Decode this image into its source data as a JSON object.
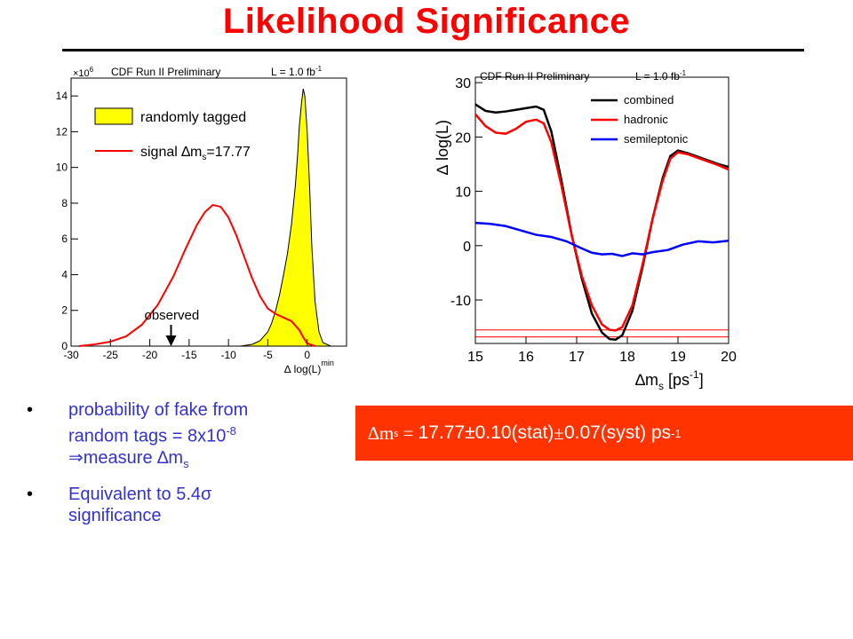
{
  "slide": {
    "title": "Likelihood Significance",
    "bullets": [
      {
        "line1": "probability of fake from",
        "line2a": "random tags = 8x10",
        "line2_exp": "-8",
        "line3_arrow": "⇒",
        "line3_text": "measure ",
        "line3_delta": "∆",
        "line3_m": "m",
        "line3_sub": "s"
      },
      {
        "line1a": "Equivalent to 5.4",
        "line1_sigma": "σ",
        "line2": "significance"
      }
    ],
    "result": {
      "delta": "∆",
      "m": "m",
      "sub": "s",
      "eq": " = ",
      "value": "17.77±0.10(stat)",
      "pm": "±",
      "value2": "0.07(syst) ps",
      "exp": "-1"
    }
  },
  "chart_data": [
    {
      "type": "area",
      "header_left": "CDF Run II Preliminary",
      "header_right": "L = 1.0 fb",
      "header_right_exp": "-1",
      "y_multiplier": "×10",
      "y_multiplier_exp": "6",
      "xlabel": "∆ log(L)",
      "xlabel_sup": "min",
      "xlim": [
        -30,
        5
      ],
      "ylim": [
        0,
        15
      ],
      "x_ticks": [
        -30,
        -25,
        -20,
        -15,
        -10,
        -5,
        0
      ],
      "y_ticks": [
        0,
        2,
        4,
        6,
        8,
        10,
        12,
        14
      ],
      "legend_placement": "top-left",
      "legend": [
        {
          "label": "randomly tagged",
          "color": "#ffff00"
        },
        {
          "label_main": "signal ∆m",
          "label_sub": "s",
          "label_tail": "=17.77",
          "color": "#ff0000"
        }
      ],
      "annotation": {
        "text": "observed",
        "x": -17.3
      },
      "series": [
        {
          "name": "randomly tagged",
          "kind": "histogram",
          "color": "#ffff00",
          "x": [
            -8.5,
            -7,
            -6,
            -5,
            -4.5,
            -4,
            -3.5,
            -3,
            -2.5,
            -2,
            -1.5,
            -1.2,
            -1,
            -0.7,
            -0.5,
            -0.3,
            0,
            0.3,
            0.6,
            1,
            1.5,
            2,
            3
          ],
          "values": [
            0,
            0.1,
            0.3,
            0.8,
            1.3,
            2.0,
            2.9,
            4.0,
            5.2,
            6.8,
            9.0,
            10.8,
            12.3,
            13.7,
            14.4,
            14.0,
            12.0,
            9.0,
            5.5,
            2.5,
            0.8,
            0.2,
            0
          ]
        },
        {
          "name": "signal ∆ms=17.77",
          "kind": "line",
          "color": "#ff0000",
          "x": [
            -29,
            -27,
            -25,
            -23,
            -21,
            -19,
            -17,
            -15.5,
            -14,
            -13,
            -12,
            -11,
            -10,
            -9,
            -8,
            -7,
            -6,
            -5,
            -4,
            -3,
            -2,
            -1,
            -0.5,
            0,
            1
          ],
          "values": [
            0,
            0.1,
            0.25,
            0.55,
            1.2,
            2.3,
            3.9,
            5.4,
            6.8,
            7.5,
            7.9,
            7.8,
            7.2,
            6.2,
            5.0,
            3.8,
            2.8,
            2.1,
            1.8,
            1.6,
            1.4,
            0.9,
            0.5,
            0.15,
            0
          ]
        }
      ]
    },
    {
      "type": "line",
      "header_left": "CDF Run II Preliminary",
      "header_right": "L = 1.0 fb",
      "header_right_exp": "-1",
      "ylabel": "∆ log(L)",
      "xlabel_main": "∆m",
      "xlabel_sub": "s",
      "xlabel_unit": " [ps",
      "xlabel_exp": "-1",
      "xlabel_close": "]",
      "xlim": [
        15,
        20
      ],
      "ylim": [
        -18,
        31
      ],
      "x_ticks": [
        15,
        16,
        17,
        18,
        19,
        20
      ],
      "y_ticks": [
        -10,
        0,
        10,
        20,
        30
      ],
      "legend_placement": "top-right",
      "hlines": [
        -15.5,
        -16.8
      ],
      "hline_color": "#ff0000",
      "series": [
        {
          "name": "combined",
          "color": "#000000",
          "x": [
            15,
            15.2,
            15.4,
            15.6,
            15.8,
            16.0,
            16.2,
            16.35,
            16.5,
            16.7,
            16.9,
            17.1,
            17.3,
            17.5,
            17.65,
            17.77,
            17.9,
            18.1,
            18.3,
            18.5,
            18.7,
            18.85,
            19.0,
            19.2,
            19.5,
            19.8,
            20
          ],
          "values": [
            26,
            24.8,
            24.5,
            24.7,
            25.0,
            25.3,
            25.6,
            25.0,
            21.0,
            12.0,
            2.0,
            -6.0,
            -12.5,
            -16.0,
            -17.2,
            -17.3,
            -16.5,
            -12.0,
            -4.0,
            5.0,
            12.5,
            16.5,
            17.5,
            17.0,
            16.0,
            15.0,
            14.5
          ]
        },
        {
          "name": "hadronic",
          "color": "#ff0000",
          "x": [
            15,
            15.2,
            15.4,
            15.6,
            15.8,
            16.0,
            16.2,
            16.35,
            16.5,
            16.7,
            16.9,
            17.1,
            17.3,
            17.5,
            17.65,
            17.77,
            17.9,
            18.1,
            18.3,
            18.5,
            18.7,
            18.85,
            19.0,
            19.2,
            19.5,
            19.8,
            20
          ],
          "values": [
            24.2,
            22.0,
            20.8,
            20.6,
            21.5,
            22.8,
            23.2,
            22.5,
            19.0,
            11.0,
            2.0,
            -5.5,
            -11.0,
            -14.5,
            -15.5,
            -15.6,
            -15.0,
            -11.0,
            -3.5,
            5.0,
            12.0,
            16.0,
            17.2,
            16.8,
            15.8,
            14.8,
            14.0
          ]
        },
        {
          "name": "semileptonic",
          "color": "#0000ff",
          "x": [
            15,
            15.3,
            15.6,
            15.9,
            16.2,
            16.5,
            16.8,
            17.1,
            17.3,
            17.5,
            17.7,
            17.9,
            18.1,
            18.3,
            18.5,
            18.8,
            19.1,
            19.4,
            19.7,
            20
          ],
          "values": [
            4.2,
            4.0,
            3.6,
            2.8,
            2.0,
            1.6,
            0.8,
            -0.5,
            -1.3,
            -1.6,
            -1.5,
            -1.9,
            -1.4,
            -1.6,
            -1.2,
            -0.8,
            0.2,
            0.8,
            0.6,
            0.9
          ]
        }
      ]
    }
  ]
}
